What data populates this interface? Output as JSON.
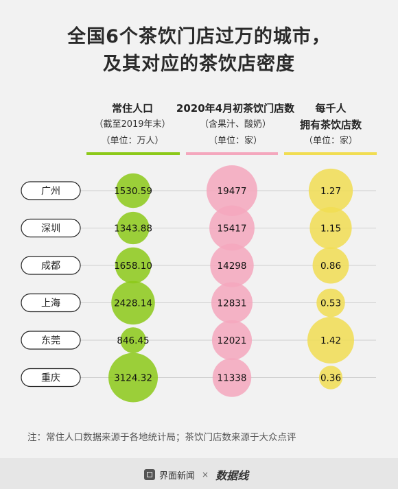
{
  "title": {
    "line1": "全国6个茶饮门店过万的城市，",
    "line2": "及其对应的茶饮店密度"
  },
  "columns": [
    {
      "h1": "常住人口",
      "h2a": "（截至2019年末）",
      "h2b": "（单位：万人）",
      "color": "#8cc919"
    },
    {
      "h1": "2020年4月初茶饮门店数",
      "h2a": "（含果汁、酸奶）",
      "h2b": "（单位：家）",
      "color": "#f4a7bd"
    },
    {
      "h1": "每千人",
      "h2a": "拥有茶饮店数",
      "h2b": "（单位：家）",
      "color": "#f1dd52"
    }
  ],
  "chart_data": {
    "type": "bubble-table",
    "categories": [
      "广州",
      "深圳",
      "成都",
      "上海",
      "东莞",
      "重庆"
    ],
    "series": [
      {
        "name": "常住人口",
        "values": [
          1530.59,
          1343.88,
          1658.1,
          2428.14,
          846.45,
          3124.32
        ],
        "display": [
          "1530.59",
          "1343.88",
          "1658.10",
          "2428.14",
          "846.45",
          "3124.32"
        ]
      },
      {
        "name": "2020年4月初茶饮门店数",
        "values": [
          19477,
          15417,
          14298,
          12831,
          12021,
          11338
        ],
        "display": [
          "19477",
          "15417",
          "14298",
          "12831",
          "12021",
          "11338"
        ]
      },
      {
        "name": "每千人",
        "values": [
          1.27,
          1.15,
          0.86,
          0.53,
          1.42,
          0.36
        ],
        "display": [
          "1.27",
          "1.15",
          "0.86",
          "0.53",
          "1.42",
          "0.36"
        ]
      }
    ]
  },
  "note": "注：常住人口数据来源于各地统计局；茶饮门店数来源于大众点评",
  "footer": {
    "brand1": "界面新闻",
    "times": "×",
    "brand2": "数据线"
  }
}
